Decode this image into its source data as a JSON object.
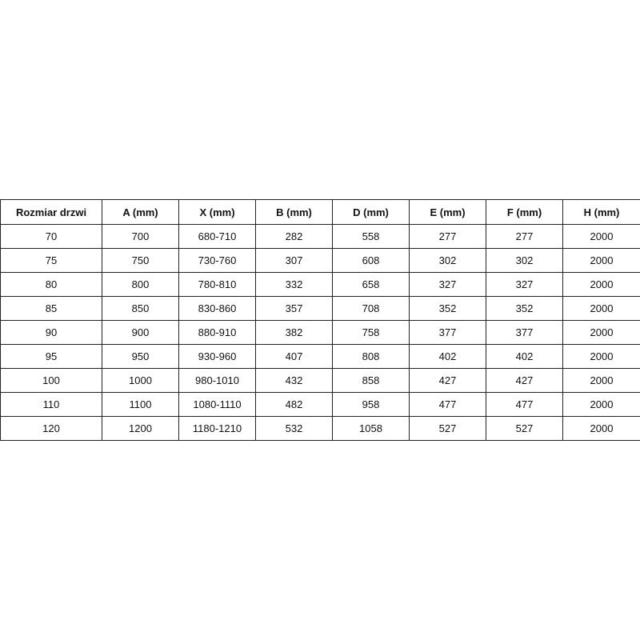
{
  "table": {
    "headers": [
      "Rozmiar drzwi",
      "A (mm)",
      "X (mm)",
      "B (mm)",
      "D (mm)",
      "E (mm)",
      "F (mm)",
      "H (mm)"
    ],
    "rows": [
      [
        "70",
        "700",
        "680-710",
        "282",
        "558",
        "277",
        "277",
        "2000"
      ],
      [
        "75",
        "750",
        "730-760",
        "307",
        "608",
        "302",
        "302",
        "2000"
      ],
      [
        "80",
        "800",
        "780-810",
        "332",
        "658",
        "327",
        "327",
        "2000"
      ],
      [
        "85",
        "850",
        "830-860",
        "357",
        "708",
        "352",
        "352",
        "2000"
      ],
      [
        "90",
        "900",
        "880-910",
        "382",
        "758",
        "377",
        "377",
        "2000"
      ],
      [
        "95",
        "950",
        "930-960",
        "407",
        "808",
        "402",
        "402",
        "2000"
      ],
      [
        "100",
        "1000",
        "980-1010",
        "432",
        "858",
        "427",
        "427",
        "2000"
      ],
      [
        "110",
        "1100",
        "1080-1110",
        "482",
        "958",
        "477",
        "477",
        "2000"
      ],
      [
        "120",
        "1200",
        "1180-1210",
        "532",
        "1058",
        "527",
        "527",
        "2000"
      ]
    ]
  }
}
